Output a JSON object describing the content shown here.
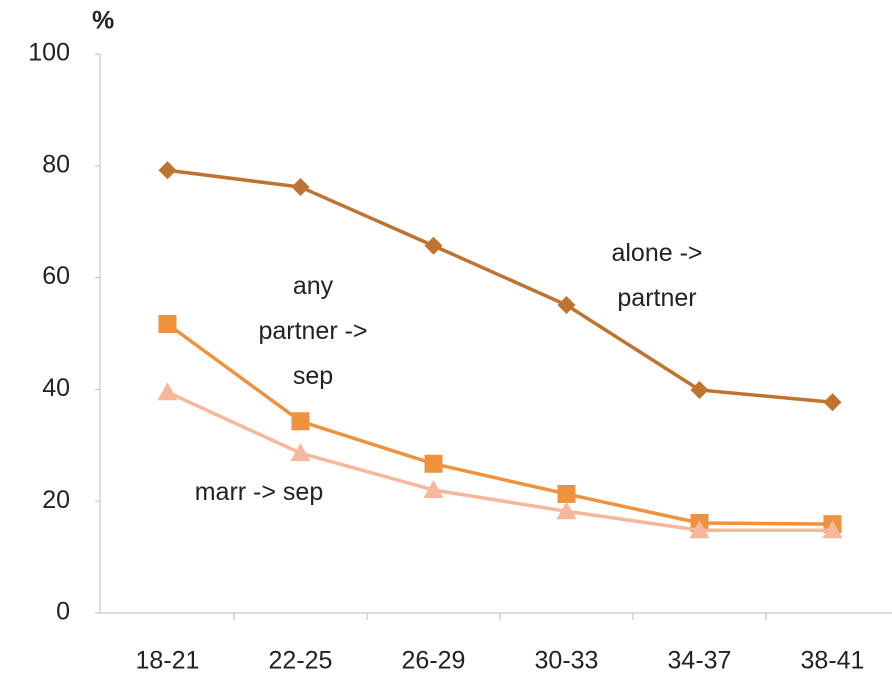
{
  "chart_data": {
    "type": "line",
    "y_unit": "%",
    "categories": [
      "18-21",
      "22-25",
      "26-29",
      "30-33",
      "34-37",
      "38-41"
    ],
    "series": [
      {
        "name": "alone -> partner",
        "color": "#c0732f",
        "marker": "diamond",
        "values": [
          79.2,
          76.2,
          65.7,
          55.1,
          39.9,
          37.7
        ]
      },
      {
        "name": "any partner -> sep",
        "color": "#f0913e",
        "marker": "square",
        "values": [
          51.7,
          34.3,
          26.7,
          21.3,
          16.1,
          15.9
        ]
      },
      {
        "name": "marr -> sep",
        "color": "#f5b89a",
        "marker": "triangle",
        "values": [
          39.5,
          28.6,
          22.0,
          18.2,
          14.8,
          14.8
        ]
      }
    ],
    "ylim": [
      0,
      100
    ],
    "yticks": [
      0,
      20,
      40,
      60,
      80,
      100
    ],
    "grid": false
  }
}
